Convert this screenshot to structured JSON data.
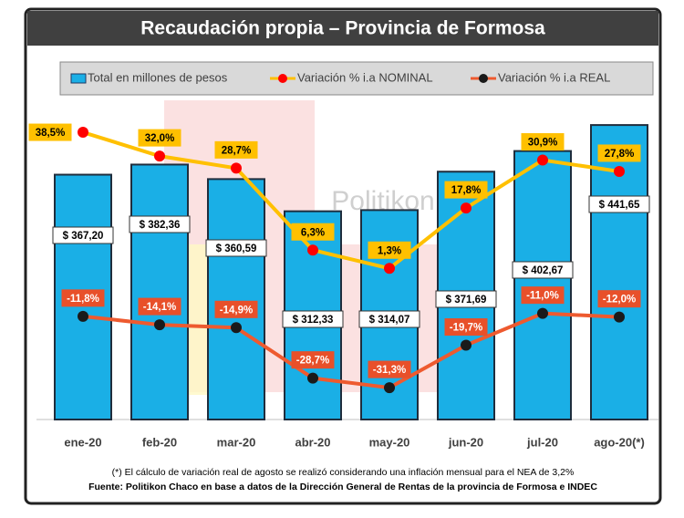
{
  "chart_data": {
    "type": "bar-line",
    "title": "Recaudación propia – Provincia de Formosa",
    "watermark": "Politikon",
    "categories": [
      "ene-20",
      "feb-20",
      "mar-20",
      "abr-20",
      "may-20",
      "jun-20",
      "jul-20",
      "ago-20(*)"
    ],
    "ylim": [
      0,
      450
    ],
    "y2lim": [
      -40,
      42
    ],
    "series": [
      {
        "name": "Total en millones de pesos",
        "type": "bar",
        "color": "#1aafe6",
        "values": [
          367.2,
          382.36,
          360.59,
          312.33,
          314.07,
          371.69,
          402.67,
          441.65
        ],
        "value_labels": [
          "$ 367,20",
          "$ 382,36",
          "$ 360,59",
          "$ 312,33",
          "$ 314,07",
          "$ 371,69",
          "$ 402,67",
          "$ 441,65"
        ]
      },
      {
        "name": "Variación % i.a NOMINAL",
        "type": "line",
        "axis": "y2",
        "color": "#ffc000",
        "marker_color": "#ff0000",
        "values": [
          38.5,
          32.0,
          28.7,
          6.3,
          1.3,
          17.8,
          30.9,
          27.8
        ],
        "value_labels": [
          "38,5%",
          "32,0%",
          "28,7%",
          "6,3%",
          "1,3%",
          "17,8%",
          "30,9%",
          "27,8%"
        ]
      },
      {
        "name": "Variación % i.a REAL",
        "type": "line",
        "axis": "y2",
        "color": "#ee5a2f",
        "marker_color": "#1a1a1a",
        "values": [
          -11.8,
          -14.1,
          -14.9,
          -28.7,
          -31.3,
          -19.7,
          -11.0,
          -12.0
        ],
        "value_labels": [
          "-11,8%",
          "-14,1%",
          "-14,9%",
          "-28,7%",
          "-31,3%",
          "-19,7%",
          "-11,0%",
          "-12,0%"
        ]
      }
    ],
    "footnote": "(*) El cálculo de variación real de agosto se realizó considerando una inflación mensual para el NEA de 3,2%",
    "source": "Fuente: Politikon Chaco en base a datos de la Dirección General de Rentas de la provincia de Formosa e INDEC"
  }
}
